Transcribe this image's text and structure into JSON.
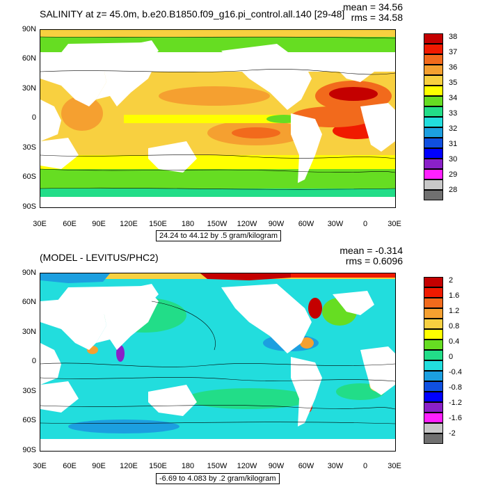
{
  "panel1": {
    "title": "SALINITY at z=  45.0m, b.e20.B1850.f09_g16.pi_control.all.140 [29-48]",
    "mean_label": "mean = 34.56",
    "rms_label": "rms = 34.58",
    "range_label": "24.24 to 44.12 by .5 gram/kilogram",
    "lat_labels": [
      "90N",
      "60N",
      "30N",
      "0",
      "30S",
      "60S",
      "90S"
    ],
    "lon_labels": [
      "30E",
      "60E",
      "90E",
      "120E",
      "150E",
      "180",
      "150W",
      "120W",
      "90W",
      "60W",
      "30W",
      "0",
      "30E"
    ],
    "colorbar": {
      "labels": [
        "38",
        "37",
        "36",
        "35",
        "34",
        "33",
        "32",
        "31",
        "30",
        "29",
        "28"
      ],
      "colors": [
        "#c40000",
        "#f01a00",
        "#f26a1c",
        "#f5a030",
        "#f8d040",
        "#ffff00",
        "#66dd22",
        "#22dd88",
        "#22dddd",
        "#1c9fe0",
        "#1050e0",
        "#0000ff",
        "#8a20c8",
        "#ff20ff",
        "#c8c8c8",
        "#707070"
      ]
    }
  },
  "panel2": {
    "title": "(MODEL - LEVITUS/PHC2)",
    "mean_label": "mean = -0.314",
    "rms_label": "rms = 0.6096",
    "range_label": "-6.69 to 4.083 by .2 gram/kilogram",
    "lat_labels": [
      "90N",
      "60N",
      "30N",
      "0",
      "30S",
      "60S",
      "90S"
    ],
    "lon_labels": [
      "30E",
      "60E",
      "90E",
      "120E",
      "150E",
      "180",
      "150W",
      "120W",
      "90W",
      "60W",
      "30W",
      "0",
      "30E"
    ],
    "colorbar": {
      "labels": [
        "2",
        "1.6",
        "1.2",
        "0.8",
        "0.4",
        "0",
        "-0.4",
        "-0.8",
        "-1.2",
        "-1.6",
        "-2"
      ],
      "colors": [
        "#c40000",
        "#f01a00",
        "#f26a1c",
        "#f5a030",
        "#f8d040",
        "#ffff00",
        "#66dd22",
        "#22dd88",
        "#22dddd",
        "#1c9fe0",
        "#1050e0",
        "#0000ff",
        "#8a20c8",
        "#ff20ff",
        "#c8c8c8",
        "#707070"
      ]
    }
  }
}
